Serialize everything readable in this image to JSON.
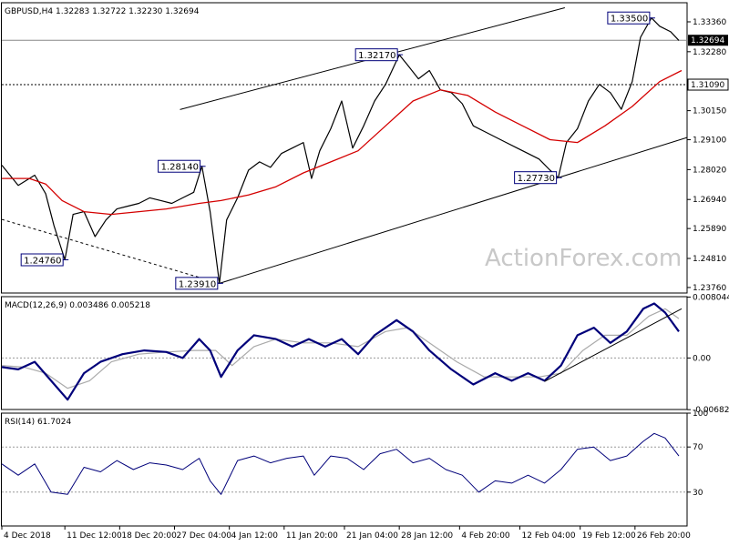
{
  "watermark": "ActionForex.com",
  "chart_data": [
    {
      "type": "line",
      "title": "GBPUSD,H4  1.32283 1.32722 1.32230 1.32694",
      "ylim": [
        1.2356,
        1.3405
      ],
      "y_ticks": [
        "1.33360",
        "1.32280",
        "1.30150",
        "1.29100",
        "1.28020",
        "1.26940",
        "1.25890",
        "1.24810",
        "1.23760"
      ],
      "y_tick_values": [
        1.3336,
        1.3228,
        1.3015,
        1.291,
        1.2802,
        1.2694,
        1.2589,
        1.2481,
        1.2376
      ],
      "current_price": {
        "label": "1.32694",
        "value": 1.32694
      },
      "horizontal_level": {
        "label": "1.31090",
        "value": 1.3109
      },
      "price_labels": [
        {
          "label": "1.24760",
          "x": 11.5,
          "value": 1.2476
        },
        {
          "label": "1.28140",
          "x": 36.5,
          "value": 1.2814
        },
        {
          "label": "1.23910",
          "x": 39.7,
          "value": 1.2391
        },
        {
          "label": "1.32170",
          "x": 72.5,
          "value": 1.3217
        },
        {
          "label": "1.27730",
          "x": 101.5,
          "value": 1.2773
        },
        {
          "label": "1.33500",
          "x": 118.5,
          "value": 1.335
        }
      ],
      "channel_upper": [
        {
          "x": 32.5,
          "y": 1.3019
        },
        {
          "x": 102.7,
          "y": 1.3387
        }
      ],
      "channel_lower": [
        {
          "x": 39.7,
          "y": 1.2391
        },
        {
          "x": 125.0,
          "y": 1.2918
        }
      ],
      "trend_down": [
        {
          "x": 0.0,
          "y": 1.2622
        },
        {
          "x": 39.7,
          "y": 1.2391
        }
      ],
      "close_path": [
        {
          "x": 0,
          "y": 1.2818
        },
        {
          "x": 3,
          "y": 1.2745
        },
        {
          "x": 6,
          "y": 1.2782
        },
        {
          "x": 8,
          "y": 1.2715
        },
        {
          "x": 9.5,
          "y": 1.26
        },
        {
          "x": 11.5,
          "y": 1.2476
        },
        {
          "x": 13,
          "y": 1.264
        },
        {
          "x": 15,
          "y": 1.265
        },
        {
          "x": 17,
          "y": 1.256
        },
        {
          "x": 19,
          "y": 1.262
        },
        {
          "x": 21,
          "y": 1.266
        },
        {
          "x": 23,
          "y": 1.267
        },
        {
          "x": 25,
          "y": 1.268
        },
        {
          "x": 27,
          "y": 1.27
        },
        {
          "x": 29,
          "y": 1.269
        },
        {
          "x": 31,
          "y": 1.268
        },
        {
          "x": 33,
          "y": 1.27
        },
        {
          "x": 35,
          "y": 1.272
        },
        {
          "x": 36.5,
          "y": 1.2814
        },
        {
          "x": 38,
          "y": 1.265
        },
        {
          "x": 39.7,
          "y": 1.2391
        },
        {
          "x": 41,
          "y": 1.262
        },
        {
          "x": 43,
          "y": 1.27
        },
        {
          "x": 45,
          "y": 1.28
        },
        {
          "x": 47,
          "y": 1.283
        },
        {
          "x": 49,
          "y": 1.281
        },
        {
          "x": 51,
          "y": 1.286
        },
        {
          "x": 53,
          "y": 1.288
        },
        {
          "x": 55,
          "y": 1.29
        },
        {
          "x": 56.5,
          "y": 1.277
        },
        {
          "x": 58,
          "y": 1.287
        },
        {
          "x": 60,
          "y": 1.295
        },
        {
          "x": 62,
          "y": 1.305
        },
        {
          "x": 64,
          "y": 1.288
        },
        {
          "x": 66,
          "y": 1.296
        },
        {
          "x": 68,
          "y": 1.305
        },
        {
          "x": 70,
          "y": 1.311
        },
        {
          "x": 72.5,
          "y": 1.3217
        },
        {
          "x": 74,
          "y": 1.318
        },
        {
          "x": 76,
          "y": 1.313
        },
        {
          "x": 78,
          "y": 1.316
        },
        {
          "x": 80,
          "y": 1.309
        },
        {
          "x": 82,
          "y": 1.308
        },
        {
          "x": 84,
          "y": 1.304
        },
        {
          "x": 86,
          "y": 1.296
        },
        {
          "x": 88,
          "y": 1.294
        },
        {
          "x": 90,
          "y": 1.292
        },
        {
          "x": 92,
          "y": 1.29
        },
        {
          "x": 94,
          "y": 1.288
        },
        {
          "x": 96,
          "y": 1.286
        },
        {
          "x": 98,
          "y": 1.284
        },
        {
          "x": 100,
          "y": 1.28
        },
        {
          "x": 101.5,
          "y": 1.2773
        },
        {
          "x": 103,
          "y": 1.29
        },
        {
          "x": 105,
          "y": 1.295
        },
        {
          "x": 107,
          "y": 1.305
        },
        {
          "x": 109,
          "y": 1.311
        },
        {
          "x": 111,
          "y": 1.308
        },
        {
          "x": 113,
          "y": 1.302
        },
        {
          "x": 115,
          "y": 1.312
        },
        {
          "x": 116.5,
          "y": 1.328
        },
        {
          "x": 118.5,
          "y": 1.335
        },
        {
          "x": 120,
          "y": 1.332
        },
        {
          "x": 122,
          "y": 1.33
        },
        {
          "x": 123.5,
          "y": 1.3269
        }
      ],
      "ma_path": [
        {
          "x": 0,
          "y": 1.277
        },
        {
          "x": 5,
          "y": 1.277
        },
        {
          "x": 8,
          "y": 1.275
        },
        {
          "x": 11,
          "y": 1.269
        },
        {
          "x": 15,
          "y": 1.265
        },
        {
          "x": 20,
          "y": 1.264
        },
        {
          "x": 25,
          "y": 1.265
        },
        {
          "x": 30,
          "y": 1.266
        },
        {
          "x": 36,
          "y": 1.268
        },
        {
          "x": 40,
          "y": 1.269
        },
        {
          "x": 45,
          "y": 1.271
        },
        {
          "x": 50,
          "y": 1.274
        },
        {
          "x": 55,
          "y": 1.279
        },
        {
          "x": 60,
          "y": 1.283
        },
        {
          "x": 65,
          "y": 1.287
        },
        {
          "x": 70,
          "y": 1.296
        },
        {
          "x": 75,
          "y": 1.305
        },
        {
          "x": 80,
          "y": 1.309
        },
        {
          "x": 85,
          "y": 1.307
        },
        {
          "x": 90,
          "y": 1.301
        },
        {
          "x": 95,
          "y": 1.296
        },
        {
          "x": 100,
          "y": 1.291
        },
        {
          "x": 105,
          "y": 1.29
        },
        {
          "x": 110,
          "y": 1.296
        },
        {
          "x": 115,
          "y": 1.303
        },
        {
          "x": 120,
          "y": 1.312
        },
        {
          "x": 124,
          "y": 1.316
        }
      ]
    },
    {
      "type": "line",
      "title": "MACD(12,26,9) 0.003486 0.005218",
      "ylim": [
        -0.0068,
        0.0081
      ],
      "y_ticks": [
        "0.008044",
        "0.00",
        "-0.006821"
      ],
      "y_tick_values": [
        0.008044,
        0.0,
        -0.006821
      ],
      "trend_line": [
        {
          "x": 99.0,
          "y": -0.0031
        },
        {
          "x": 124.0,
          "y": 0.0065
        }
      ],
      "macd_path": [
        {
          "x": 0,
          "y": -0.0012
        },
        {
          "x": 3,
          "y": -0.0015
        },
        {
          "x": 6,
          "y": -0.0005
        },
        {
          "x": 9,
          "y": -0.003
        },
        {
          "x": 12,
          "y": -0.0055
        },
        {
          "x": 15,
          "y": -0.002
        },
        {
          "x": 18,
          "y": -0.0005
        },
        {
          "x": 22,
          "y": 0.0005
        },
        {
          "x": 26,
          "y": 0.001
        },
        {
          "x": 30,
          "y": 0.0008
        },
        {
          "x": 33,
          "y": 0.0
        },
        {
          "x": 36,
          "y": 0.0025
        },
        {
          "x": 38,
          "y": 0.001
        },
        {
          "x": 40,
          "y": -0.0025
        },
        {
          "x": 43,
          "y": 0.001
        },
        {
          "x": 46,
          "y": 0.003
        },
        {
          "x": 50,
          "y": 0.0025
        },
        {
          "x": 53,
          "y": 0.0015
        },
        {
          "x": 56,
          "y": 0.0025
        },
        {
          "x": 59,
          "y": 0.0015
        },
        {
          "x": 62,
          "y": 0.0025
        },
        {
          "x": 65,
          "y": 0.0005
        },
        {
          "x": 68,
          "y": 0.003
        },
        {
          "x": 72,
          "y": 0.005
        },
        {
          "x": 75,
          "y": 0.0035
        },
        {
          "x": 78,
          "y": 0.001
        },
        {
          "x": 82,
          "y": -0.0015
        },
        {
          "x": 86,
          "y": -0.0035
        },
        {
          "x": 90,
          "y": -0.002
        },
        {
          "x": 93,
          "y": -0.003
        },
        {
          "x": 96,
          "y": -0.002
        },
        {
          "x": 99,
          "y": -0.003
        },
        {
          "x": 102,
          "y": -0.001
        },
        {
          "x": 105,
          "y": 0.003
        },
        {
          "x": 108,
          "y": 0.004
        },
        {
          "x": 111,
          "y": 0.002
        },
        {
          "x": 114,
          "y": 0.0035
        },
        {
          "x": 117,
          "y": 0.0065
        },
        {
          "x": 119,
          "y": 0.0072
        },
        {
          "x": 121,
          "y": 0.006
        },
        {
          "x": 123.5,
          "y": 0.0035
        }
      ],
      "signal_path": [
        {
          "x": 0,
          "y": -0.001
        },
        {
          "x": 4,
          "y": -0.0012
        },
        {
          "x": 8,
          "y": -0.002
        },
        {
          "x": 12,
          "y": -0.004
        },
        {
          "x": 16,
          "y": -0.003
        },
        {
          "x": 20,
          "y": -0.0005
        },
        {
          "x": 25,
          "y": 0.0005
        },
        {
          "x": 30,
          "y": 0.0008
        },
        {
          "x": 35,
          "y": 0.001
        },
        {
          "x": 39,
          "y": 0.001
        },
        {
          "x": 42,
          "y": -0.001
        },
        {
          "x": 46,
          "y": 0.0015
        },
        {
          "x": 50,
          "y": 0.0025
        },
        {
          "x": 55,
          "y": 0.002
        },
        {
          "x": 60,
          "y": 0.002
        },
        {
          "x": 65,
          "y": 0.0015
        },
        {
          "x": 70,
          "y": 0.0035
        },
        {
          "x": 74,
          "y": 0.004
        },
        {
          "x": 78,
          "y": 0.002
        },
        {
          "x": 83,
          "y": -0.0005
        },
        {
          "x": 88,
          "y": -0.0025
        },
        {
          "x": 93,
          "y": -0.0025
        },
        {
          "x": 98,
          "y": -0.0025
        },
        {
          "x": 102,
          "y": -0.002
        },
        {
          "x": 106,
          "y": 0.001
        },
        {
          "x": 110,
          "y": 0.003
        },
        {
          "x": 114,
          "y": 0.003
        },
        {
          "x": 118,
          "y": 0.0055
        },
        {
          "x": 121,
          "y": 0.0065
        },
        {
          "x": 123.5,
          "y": 0.0052
        }
      ]
    },
    {
      "type": "line",
      "title": "RSI(14) 61.7024",
      "ylim": [
        0,
        100
      ],
      "y_ticks": [
        "100",
        "70",
        "30"
      ],
      "y_tick_values": [
        100,
        70,
        30
      ],
      "rsi_path": [
        {
          "x": 0,
          "y": 55
        },
        {
          "x": 3,
          "y": 45
        },
        {
          "x": 6,
          "y": 55
        },
        {
          "x": 9,
          "y": 30
        },
        {
          "x": 12,
          "y": 28
        },
        {
          "x": 15,
          "y": 52
        },
        {
          "x": 18,
          "y": 48
        },
        {
          "x": 21,
          "y": 58
        },
        {
          "x": 24,
          "y": 50
        },
        {
          "x": 27,
          "y": 56
        },
        {
          "x": 30,
          "y": 54
        },
        {
          "x": 33,
          "y": 50
        },
        {
          "x": 36,
          "y": 60
        },
        {
          "x": 38,
          "y": 40
        },
        {
          "x": 40,
          "y": 28
        },
        {
          "x": 43,
          "y": 58
        },
        {
          "x": 46,
          "y": 62
        },
        {
          "x": 49,
          "y": 56
        },
        {
          "x": 52,
          "y": 60
        },
        {
          "x": 55,
          "y": 62
        },
        {
          "x": 57,
          "y": 45
        },
        {
          "x": 60,
          "y": 62
        },
        {
          "x": 63,
          "y": 60
        },
        {
          "x": 66,
          "y": 50
        },
        {
          "x": 69,
          "y": 64
        },
        {
          "x": 72,
          "y": 68
        },
        {
          "x": 75,
          "y": 56
        },
        {
          "x": 78,
          "y": 60
        },
        {
          "x": 81,
          "y": 50
        },
        {
          "x": 84,
          "y": 45
        },
        {
          "x": 87,
          "y": 30
        },
        {
          "x": 90,
          "y": 40
        },
        {
          "x": 93,
          "y": 38
        },
        {
          "x": 96,
          "y": 45
        },
        {
          "x": 99,
          "y": 38
        },
        {
          "x": 102,
          "y": 50
        },
        {
          "x": 105,
          "y": 68
        },
        {
          "x": 108,
          "y": 70
        },
        {
          "x": 111,
          "y": 58
        },
        {
          "x": 114,
          "y": 62
        },
        {
          "x": 117,
          "y": 75
        },
        {
          "x": 119,
          "y": 82
        },
        {
          "x": 121,
          "y": 78
        },
        {
          "x": 123.5,
          "y": 62
        }
      ]
    }
  ],
  "x_axis": {
    "labels": [
      "4 Dec 2018",
      "11 Dec 12:00",
      "18 Dec 20:00",
      "27 Dec 04:00",
      "4 Jan 12:00",
      "11 Jan 20:00",
      "21 Jan 04:00",
      "28 Jan 12:00",
      "4 Feb 20:00",
      "12 Feb 04:00",
      "19 Feb 12:00",
      "26 Feb 20:00"
    ],
    "positions": [
      0,
      11.5,
      21.5,
      31.5,
      41.5,
      51.5,
      62.5,
      72.5,
      83.5,
      94.5,
      105.5,
      115.5
    ]
  },
  "colors": {
    "price": "#000000",
    "ma": "#d40000",
    "macd": "#00007a",
    "signal": "#aaaaaa",
    "label_border": "#00007a",
    "level_line": "#000000"
  }
}
